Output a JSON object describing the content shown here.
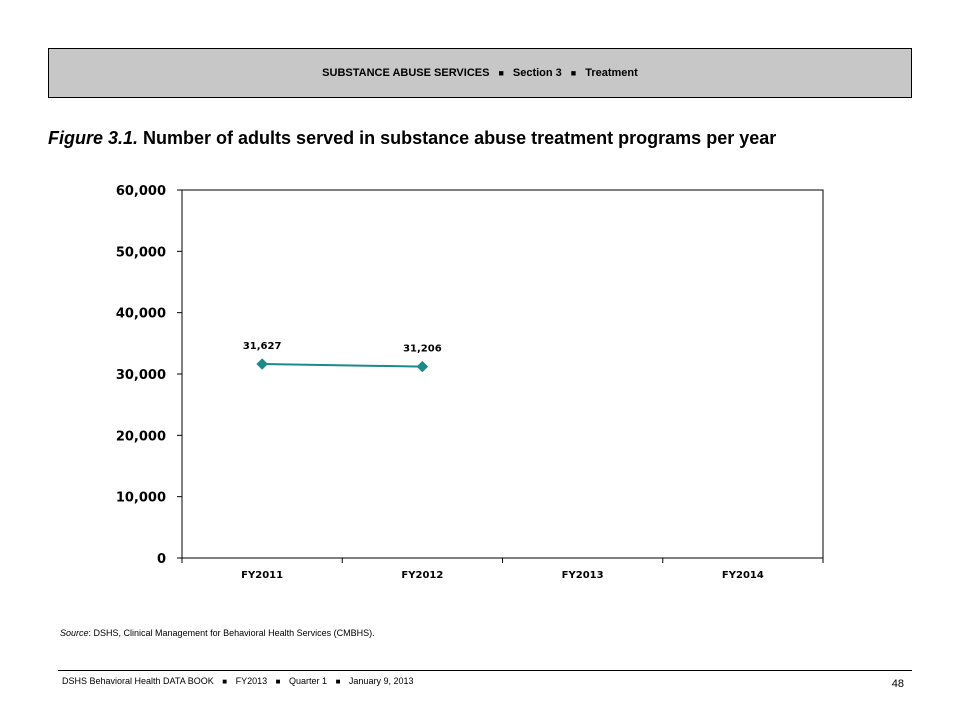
{
  "header": {
    "section": "SUBSTANCE ABUSE SERVICES",
    "section_number": "Section 3",
    "topic": "Treatment",
    "separator": "■"
  },
  "figure": {
    "label": "Figure 3.1.",
    "title": "Number of adults served in substance abuse treatment programs per year"
  },
  "chart_data": {
    "type": "line",
    "categories": [
      "FY2011",
      "FY2012",
      "FY2013",
      "FY2014"
    ],
    "y_ticks": [
      "0",
      "10,000",
      "20,000",
      "30,000",
      "40,000",
      "50,000",
      "60,000"
    ],
    "ylim": [
      0,
      60000
    ],
    "series": [
      {
        "values": [
          31627,
          31206,
          null,
          null
        ],
        "data_labels": [
          "31,627",
          "31,206",
          "",
          ""
        ],
        "color": "#1a8a8a"
      }
    ],
    "grid": false,
    "legend": "none"
  },
  "source": {
    "label": "Source",
    "text": ": DSHS, Clinical Management for Behavioral Health Services (CMBHS)."
  },
  "footer": {
    "book": "DSHS Behavioral Health DATA BOOK",
    "fiscal_year": "FY2013",
    "quarter": "Quarter 1",
    "date": "January 9, 2013",
    "separator": "■",
    "page_number": "48"
  }
}
